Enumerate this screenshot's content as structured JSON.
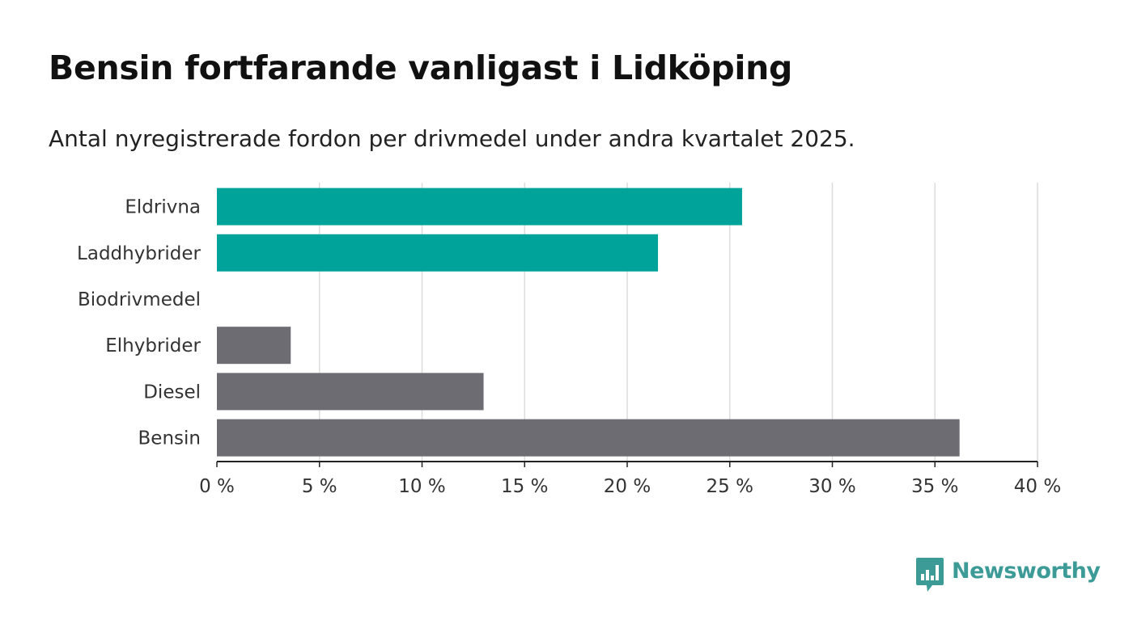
{
  "header": {
    "title": "Bensin fortfarande vanligast i Lidköping",
    "subtitle": "Antal nyregistrerade fordon per drivmedel under andra kvartalet 2025."
  },
  "brand": {
    "name": "Newsworthy",
    "color": "#3c9a97"
  },
  "colors": {
    "highlight": "#00a39a",
    "default": "#6d6c73"
  },
  "chart_data": {
    "type": "bar",
    "orientation": "horizontal",
    "title": "Bensin fortfarande vanligast i Lidköping",
    "subtitle": "Antal nyregistrerade fordon per drivmedel under andra kvartalet 2025.",
    "categories": [
      "Eldrivna",
      "Laddhybrider",
      "Biodrivmedel",
      "Elhybrider",
      "Diesel",
      "Bensin"
    ],
    "values": [
      25.6,
      21.5,
      0,
      3.6,
      13.0,
      36.2
    ],
    "highlighted": [
      true,
      true,
      false,
      false,
      false,
      false
    ],
    "unit": "%",
    "xlim": [
      0,
      40
    ],
    "xticks": [
      0,
      5,
      10,
      15,
      20,
      25,
      30,
      35,
      40
    ],
    "xtick_labels": [
      "0 %",
      "5 %",
      "10 %",
      "15 %",
      "20 %",
      "25 %",
      "30 %",
      "35 %",
      "40 %"
    ],
    "grid": "vertical",
    "legend": "none"
  }
}
